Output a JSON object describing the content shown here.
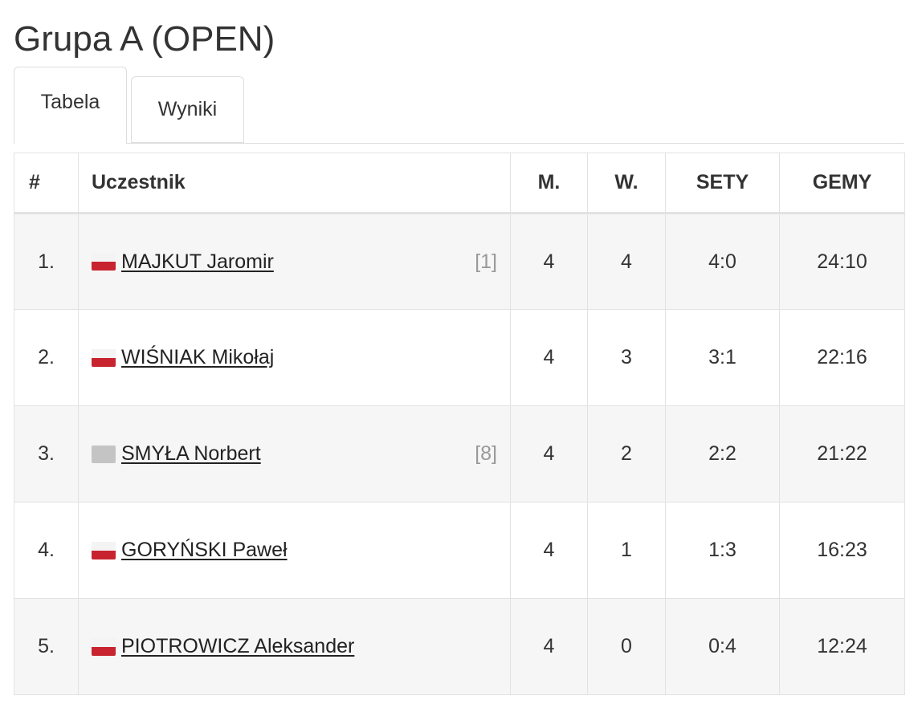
{
  "page": {
    "title": "Grupa A (OPEN)"
  },
  "tabs": [
    {
      "label": "Tabela",
      "active": true
    },
    {
      "label": "Wyniki",
      "active": false
    }
  ],
  "table": {
    "headers": {
      "rank": "#",
      "participant": "Uczestnik",
      "matches": "M.",
      "wins": "W.",
      "sets": "SETY",
      "games": "GEMY"
    },
    "rows": [
      {
        "rank": "1.",
        "flag": "pl-flag-icon",
        "name": "MAJKUT Jaromir",
        "seed": "[1]",
        "matches": "4",
        "wins": "4",
        "sets": "4:0",
        "games": "24:10"
      },
      {
        "rank": "2.",
        "flag": "pl-flag-icon",
        "name": "WIŚNIAK Mikołaj",
        "seed": "",
        "matches": "4",
        "wins": "3",
        "sets": "3:1",
        "games": "22:16"
      },
      {
        "rank": "3.",
        "flag": "unknown-flag-icon",
        "name": "SMYŁA Norbert",
        "seed": "[8]",
        "matches": "4",
        "wins": "2",
        "sets": "2:2",
        "games": "21:22"
      },
      {
        "rank": "4.",
        "flag": "pl-flag-icon",
        "name": "GORYŃSKI Paweł",
        "seed": "",
        "matches": "4",
        "wins": "1",
        "sets": "1:3",
        "games": "16:23"
      },
      {
        "rank": "5.",
        "flag": "pl-flag-icon",
        "name": "PIOTROWICZ Aleksander",
        "seed": "",
        "matches": "4",
        "wins": "0",
        "sets": "0:4",
        "games": "12:24"
      }
    ]
  },
  "colors": {
    "flag_red": "#c8242f",
    "flag_white": "#f4f4f4",
    "unknown_flag": "#c4c4c4",
    "row_stripe": "#f6f6f6",
    "border": "#e2e2e2"
  }
}
